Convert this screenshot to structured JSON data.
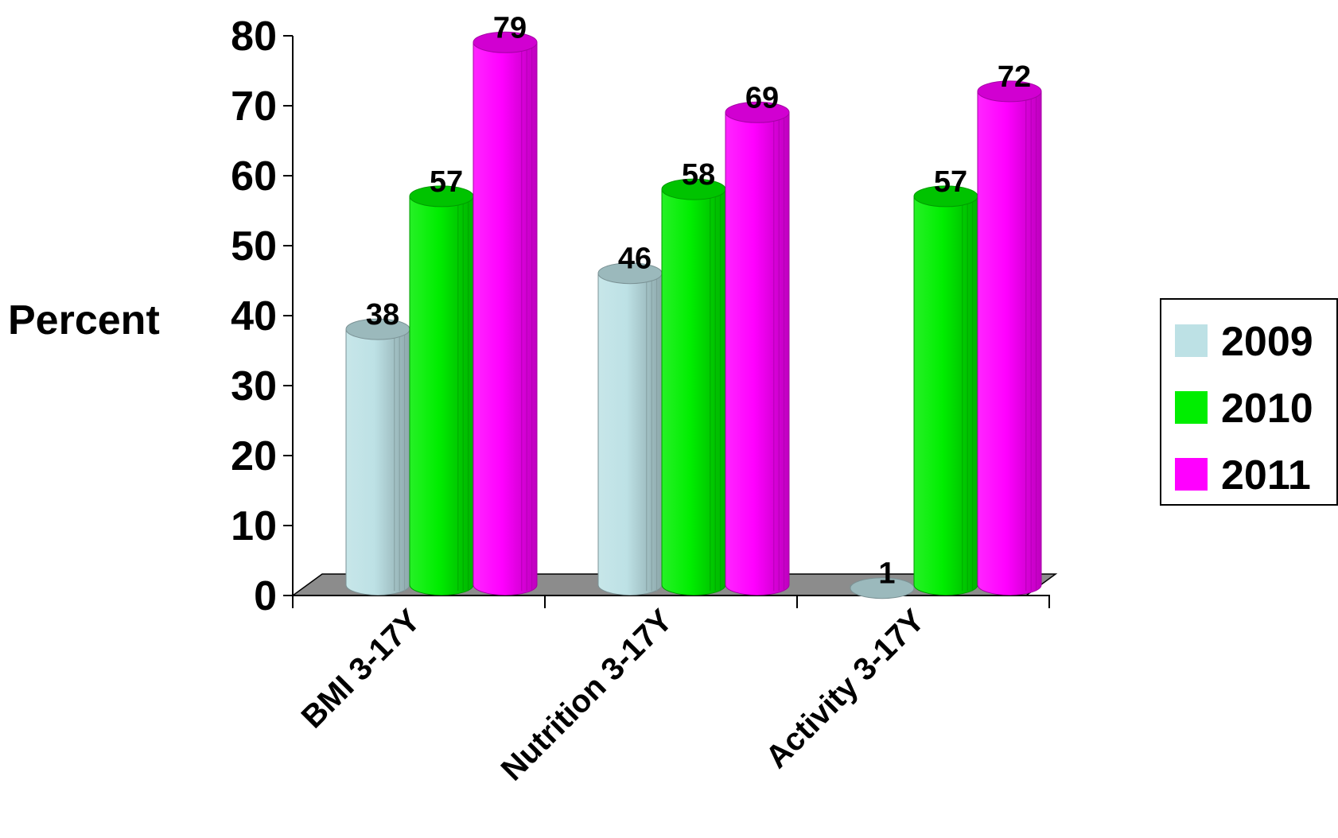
{
  "chart_data": {
    "type": "bar",
    "ylabel": "Percent",
    "xlabel": "",
    "ylim": [
      0,
      80
    ],
    "yticks": [
      "0",
      "10",
      "20",
      "30",
      "40",
      "50",
      "60",
      "70",
      "80"
    ],
    "categories": [
      "BMI 3-17Y",
      "Nutrition 3-17Y",
      "Activity 3-17Y"
    ],
    "series": [
      {
        "name": "2009",
        "values": [
          38,
          46,
          1
        ],
        "color": "#bde1e5"
      },
      {
        "name": "2010",
        "values": [
          57,
          58,
          57
        ],
        "color": "#00ee00"
      },
      {
        "name": "2011",
        "values": [
          79,
          69,
          72
        ],
        "color": "#ff00ff"
      }
    ],
    "legend_position": "right",
    "grid": false,
    "style": "3d-cylinder"
  }
}
